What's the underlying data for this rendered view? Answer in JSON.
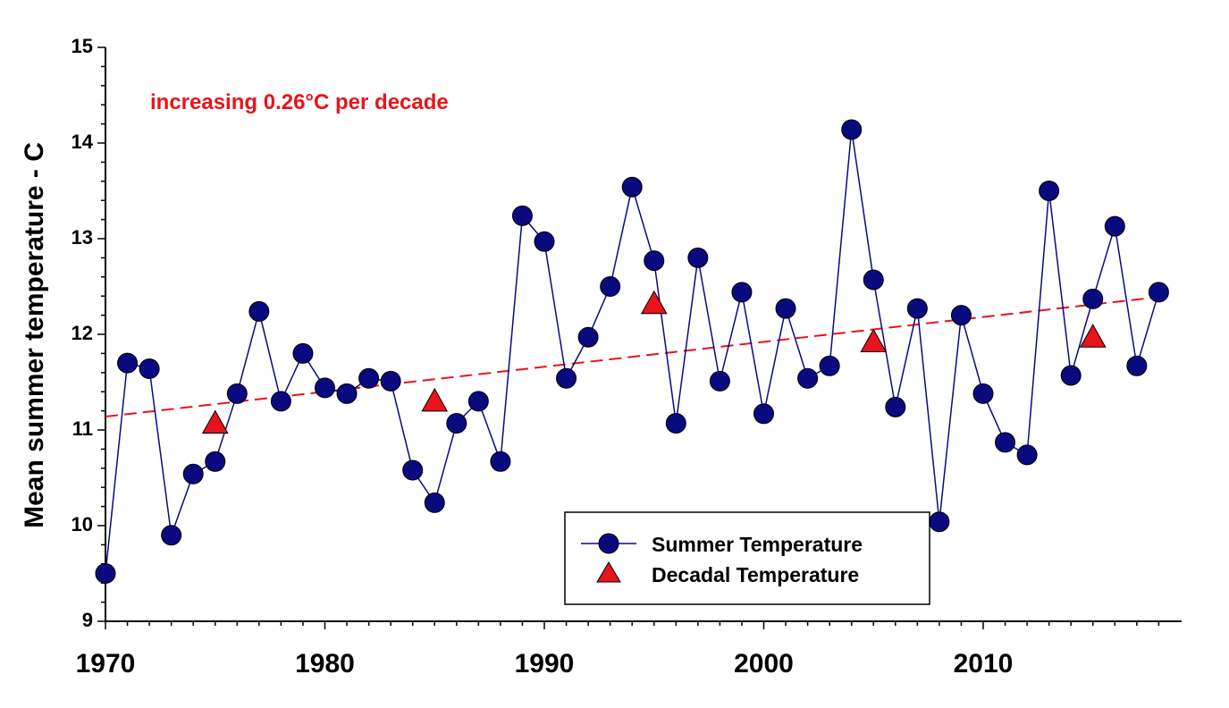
{
  "chart_data": {
    "type": "line",
    "ylabel": "Mean summer temperature - C",
    "xlabel": "",
    "title": "",
    "xlim": [
      1970,
      2019
    ],
    "ylim": [
      9,
      15
    ],
    "x_ticks": [
      1970,
      1980,
      1990,
      2000,
      2010
    ],
    "x_tick_labels": [
      "1970",
      "1980",
      "1990",
      "2000",
      "2010"
    ],
    "y_ticks": [
      9,
      10,
      11,
      12,
      13,
      14,
      15
    ],
    "y_tick_labels": [
      "9",
      "10",
      "11",
      "12",
      "13",
      "14",
      "15"
    ],
    "grid": false,
    "legend_position": "bottom-center",
    "annotation": {
      "text": "increasing 0.26°C per decade",
      "color": "#e8141b"
    },
    "series": [
      {
        "name": "Summer Temperature",
        "kind": "line-markers",
        "color": "#0a0a80",
        "marker": "circle",
        "x": [
          1970,
          1971,
          1972,
          1973,
          1974,
          1975,
          1976,
          1977,
          1978,
          1979,
          1980,
          1981,
          1982,
          1983,
          1984,
          1985,
          1986,
          1987,
          1988,
          1989,
          1990,
          1991,
          1992,
          1993,
          1994,
          1995,
          1996,
          1997,
          1998,
          1999,
          2000,
          2001,
          2002,
          2003,
          2004,
          2005,
          2006,
          2007,
          2008,
          2009,
          2010,
          2011,
          2012,
          2013,
          2014,
          2015,
          2016,
          2017,
          2018
        ],
        "values": [
          9.5,
          11.7,
          11.64,
          9.9,
          10.54,
          10.67,
          11.38,
          12.24,
          11.3,
          11.8,
          11.44,
          11.38,
          11.54,
          11.51,
          10.58,
          10.24,
          11.07,
          11.3,
          10.67,
          13.24,
          12.97,
          11.54,
          11.97,
          12.5,
          13.54,
          12.77,
          11.07,
          12.8,
          11.51,
          12.44,
          11.17,
          12.27,
          11.54,
          11.67,
          14.14,
          12.57,
          11.24,
          12.27,
          10.04,
          12.2,
          11.38,
          10.87,
          10.74,
          13.5,
          11.57,
          12.37,
          13.13,
          11.67,
          12.44
        ]
      },
      {
        "name": "Decadal Temperature",
        "kind": "markers",
        "color": "#e8141b",
        "marker": "triangle",
        "x": [
          1975,
          1985,
          1995,
          2005,
          2015
        ],
        "values": [
          11.07,
          11.3,
          12.32,
          11.92,
          11.97
        ]
      },
      {
        "kind": "trend",
        "color": "#e8141b",
        "style": "dashed",
        "x": [
          1970,
          2018
        ],
        "values": [
          11.14,
          12.39
        ]
      }
    ]
  }
}
